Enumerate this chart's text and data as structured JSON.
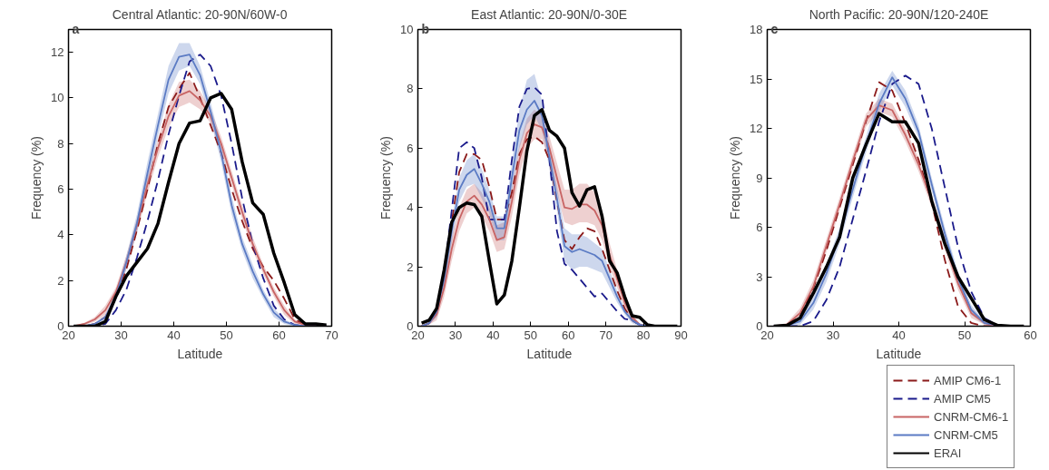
{
  "chart_data": [
    {
      "type": "line",
      "title": "Central Atlantic: 20-90N/60W-0",
      "annotations": [
        "a"
      ],
      "xlabel": "Latitude",
      "ylabel": "Frequency (%)",
      "xlim": [
        20,
        70
      ],
      "xticks": [
        20,
        30,
        40,
        50,
        60,
        70
      ],
      "ylim": [
        0,
        13
      ],
      "yticks": [
        0,
        2,
        4,
        6,
        8,
        10,
        12
      ],
      "grid": false,
      "x": [
        21,
        23,
        25,
        27,
        29,
        31,
        33,
        35,
        37,
        39,
        41,
        43,
        45,
        47,
        49,
        51,
        53,
        55,
        57,
        59,
        61,
        63,
        65,
        67,
        69
      ],
      "series": [
        {
          "color": "#8b1a1a",
          "line_style": "dashed",
          "values": [
            0,
            0,
            0.1,
            0.4,
            1.2,
            2.5,
            4.2,
            6.0,
            8.0,
            9.6,
            10.4,
            11.1,
            10.0,
            8.8,
            7.6,
            6.0,
            4.6,
            3.4,
            2.6,
            2.0,
            1.2,
            0.3,
            0.05,
            0,
            0
          ]
        },
        {
          "color": "#1a1a8b",
          "line_style": "dashed",
          "values": [
            0,
            0,
            0,
            0.1,
            0.7,
            1.6,
            3.0,
            4.6,
            6.4,
            8.4,
            10.1,
            11.6,
            11.9,
            11.4,
            10.1,
            8.0,
            5.6,
            3.6,
            2.1,
            0.9,
            0.3,
            0.05,
            0,
            0,
            0
          ]
        },
        {
          "color": "#c86464",
          "line_style": "solid",
          "values": [
            0,
            0.1,
            0.3,
            0.7,
            1.5,
            2.8,
            4.4,
            6.2,
            7.8,
            9.2,
            10.1,
            10.3,
            9.9,
            9.2,
            8.0,
            6.5,
            5.0,
            3.6,
            2.5,
            1.5,
            0.7,
            0.2,
            0.05,
            0,
            0
          ],
          "upper": [
            0,
            0.15,
            0.4,
            0.9,
            1.7,
            3.1,
            4.7,
            6.6,
            8.2,
            9.7,
            10.7,
            10.8,
            10.3,
            9.5,
            8.3,
            6.8,
            5.3,
            3.9,
            2.7,
            1.7,
            0.9,
            0.3,
            0.1,
            0,
            0
          ],
          "lower": [
            0,
            0.05,
            0.2,
            0.5,
            1.3,
            2.5,
            4.1,
            5.8,
            7.4,
            8.7,
            9.6,
            9.8,
            9.5,
            8.9,
            7.7,
            6.2,
            4.7,
            3.3,
            2.3,
            1.3,
            0.5,
            0.1,
            0,
            0,
            0
          ]
        },
        {
          "color": "#5b7bc4",
          "line_style": "solid",
          "values": [
            0,
            0,
            0.1,
            0.4,
            1.3,
            2.8,
            4.5,
            6.7,
            8.8,
            10.8,
            11.8,
            11.9,
            11.0,
            9.4,
            7.6,
            5.3,
            3.6,
            2.4,
            1.4,
            0.6,
            0.2,
            0.05,
            0,
            0,
            0
          ],
          "upper": [
            0,
            0,
            0.15,
            0.5,
            1.5,
            3.1,
            4.9,
            7.2,
            9.3,
            11.4,
            12.4,
            12.4,
            11.4,
            9.8,
            8.0,
            5.7,
            3.9,
            2.7,
            1.6,
            0.8,
            0.3,
            0.1,
            0,
            0,
            0
          ],
          "lower": [
            0,
            0,
            0.05,
            0.3,
            1.1,
            2.5,
            4.1,
            6.2,
            8.3,
            10.2,
            11.2,
            11.4,
            10.6,
            9.0,
            7.2,
            4.9,
            3.3,
            2.1,
            1.2,
            0.4,
            0.1,
            0,
            0,
            0,
            0
          ]
        },
        {
          "color": "#000000",
          "line_style": "solid",
          "values": [
            0,
            0,
            0,
            0.2,
            1.3,
            2.2,
            2.8,
            3.4,
            4.5,
            6.3,
            8.0,
            8.9,
            9.0,
            10.0,
            10.2,
            9.5,
            7.2,
            5.4,
            4.9,
            3.2,
            1.9,
            0.5,
            0.1,
            0.1,
            0.05
          ]
        }
      ]
    },
    {
      "type": "line",
      "title": "East Atlantic: 20-90N/0-30E",
      "annotations": [
        "b"
      ],
      "xlabel": "Latitude",
      "ylabel": "Frequency (%)",
      "xlim": [
        20,
        90
      ],
      "xticks": [
        20,
        30,
        40,
        50,
        60,
        70,
        80,
        90
      ],
      "ylim": [
        0,
        10
      ],
      "yticks": [
        0,
        2,
        4,
        6,
        8,
        10
      ],
      "grid": false,
      "x": [
        21,
        23,
        25,
        27,
        29,
        31,
        33,
        35,
        37,
        39,
        41,
        43,
        45,
        47,
        49,
        51,
        53,
        55,
        57,
        59,
        61,
        63,
        65,
        67,
        69,
        71,
        73,
        75,
        77,
        79,
        81,
        83,
        85,
        87,
        89
      ],
      "series": [
        {
          "color": "#8b1a1a",
          "line_style": "dashed",
          "values": [
            0,
            0.1,
            0.5,
            1.7,
            3.5,
            5.2,
            5.8,
            5.8,
            5.6,
            4.7,
            3.6,
            3.6,
            4.5,
            5.8,
            6.3,
            6.4,
            6.2,
            5.6,
            4.2,
            2.9,
            2.6,
            3.0,
            3.3,
            3.2,
            2.6,
            1.9,
            1.2,
            0.6,
            0.2,
            0.05,
            0,
            0,
            null,
            null,
            null
          ]
        },
        {
          "color": "#1a1a8b",
          "line_style": "dashed",
          "values": [
            0,
            0.1,
            0.5,
            1.8,
            3.9,
            6.0,
            6.2,
            6.0,
            5.0,
            3.6,
            3.6,
            3.6,
            5.6,
            7.4,
            8.0,
            8.05,
            7.8,
            5.6,
            3.2,
            2.1,
            1.9,
            1.6,
            1.3,
            1.0,
            1.1,
            0.8,
            0.5,
            0.25,
            0.2,
            0.05,
            0,
            0,
            null,
            null,
            null
          ]
        },
        {
          "color": "#c86464",
          "line_style": "solid",
          "values": [
            0,
            0.1,
            0.4,
            1.3,
            2.6,
            3.6,
            4.2,
            4.4,
            4.1,
            3.6,
            2.9,
            3.0,
            4.2,
            5.6,
            6.5,
            6.8,
            6.7,
            6.0,
            5.0,
            4.0,
            3.95,
            4.1,
            4.1,
            3.9,
            3.4,
            2.4,
            1.6,
            0.8,
            0.3,
            0.05,
            0,
            null,
            null,
            null,
            null
          ],
          "upper": [
            0,
            0.15,
            0.6,
            1.6,
            3.0,
            4.0,
            4.6,
            4.8,
            4.5,
            4.0,
            3.4,
            3.5,
            4.7,
            6.1,
            7.0,
            7.3,
            7.1,
            6.4,
            5.5,
            4.6,
            4.6,
            4.8,
            4.8,
            4.5,
            3.9,
            2.8,
            1.9,
            1.0,
            0.4,
            0.1,
            0,
            null,
            null,
            null,
            null
          ],
          "lower": [
            0,
            0.05,
            0.2,
            1.0,
            2.2,
            3.2,
            3.8,
            4.0,
            3.7,
            3.2,
            2.5,
            2.6,
            3.7,
            5.1,
            6.0,
            6.3,
            6.3,
            5.6,
            4.5,
            3.5,
            3.4,
            3.5,
            3.5,
            3.4,
            2.9,
            2.0,
            1.3,
            0.6,
            0.2,
            0,
            0,
            null,
            null,
            null,
            null
          ]
        },
        {
          "color": "#5b7bc4",
          "line_style": "solid",
          "values": [
            0,
            0.1,
            0.5,
            1.6,
            3.2,
            4.6,
            5.1,
            5.3,
            4.8,
            4.2,
            3.3,
            3.3,
            5.0,
            6.6,
            7.3,
            7.6,
            7.1,
            5.7,
            4.3,
            2.7,
            2.5,
            2.6,
            2.5,
            2.4,
            2.2,
            1.6,
            1.0,
            0.5,
            0.2,
            0.05,
            0,
            null,
            null,
            null,
            null
          ],
          "upper": [
            0,
            0.15,
            0.7,
            1.9,
            3.6,
            5.0,
            5.6,
            5.8,
            5.3,
            4.6,
            3.7,
            3.7,
            5.5,
            7.3,
            8.3,
            8.5,
            7.6,
            6.1,
            4.7,
            3.3,
            3.1,
            3.1,
            3.0,
            2.8,
            2.6,
            1.9,
            1.2,
            0.6,
            0.3,
            0.1,
            0,
            null,
            null,
            null,
            null
          ],
          "lower": [
            0,
            0.05,
            0.3,
            1.3,
            2.8,
            4.2,
            4.7,
            4.8,
            4.3,
            3.8,
            2.9,
            2.9,
            4.5,
            6.0,
            6.8,
            7.1,
            6.6,
            5.3,
            3.9,
            2.2,
            1.9,
            2.0,
            2.0,
            1.9,
            1.8,
            1.3,
            0.8,
            0.4,
            0.1,
            0,
            0,
            null,
            null,
            null,
            null
          ]
        },
        {
          "color": "#000000",
          "line_style": "solid",
          "values": [
            0.1,
            0.2,
            0.6,
            1.9,
            3.5,
            4.0,
            4.15,
            4.1,
            3.7,
            2.2,
            0.75,
            1.05,
            2.2,
            4.0,
            5.9,
            7.1,
            7.3,
            6.6,
            6.4,
            6.0,
            4.5,
            4.05,
            4.6,
            4.7,
            3.7,
            2.2,
            1.8,
            1.0,
            0.35,
            0.3,
            0.05,
            0,
            0,
            0,
            0
          ]
        }
      ]
    },
    {
      "type": "line",
      "title": "North Pacific: 20-90N/120-240E",
      "annotations": [
        "c"
      ],
      "xlabel": "Latitude",
      "ylabel": "Frequency (%)",
      "xlim": [
        20,
        60
      ],
      "xticks": [
        20,
        30,
        40,
        50,
        60
      ],
      "ylim": [
        0,
        18
      ],
      "yticks": [
        0,
        3,
        6,
        9,
        12,
        15,
        18
      ],
      "grid": false,
      "legend": "bottom right",
      "x": [
        21,
        23,
        25,
        27,
        29,
        31,
        33,
        35,
        37,
        39,
        41,
        43,
        45,
        47,
        49,
        51,
        53,
        55,
        57,
        59
      ],
      "series": [
        {
          "name": "AMIP CM6-1",
          "color": "#8b1a1a",
          "line_style": "dashed",
          "values": [
            0,
            0.05,
            0.6,
            2.3,
            4.6,
            7.2,
            9.8,
            12.4,
            14.8,
            14.3,
            12.3,
            10.1,
            7.5,
            4.0,
            1.2,
            0.2,
            0,
            0,
            0,
            0
          ]
        },
        {
          "name": "AMIP CM5",
          "color": "#1a1a8b",
          "line_style": "dashed",
          "values": [
            0,
            0,
            0,
            0.3,
            1.6,
            3.6,
            6.5,
            9.4,
            12.4,
            14.7,
            15.2,
            14.7,
            12.0,
            8.4,
            4.8,
            2.1,
            0.5,
            0.05,
            0,
            0
          ]
        },
        {
          "name": "CNRM-CM6-1",
          "color": "#c86464",
          "line_style": "solid",
          "values": [
            0,
            0.1,
            0.8,
            2.4,
            4.9,
            7.4,
            10.0,
            12.5,
            13.4,
            13.1,
            11.6,
            9.8,
            7.6,
            5.0,
            2.6,
            0.8,
            0.2,
            0,
            0,
            0
          ],
          "upper": [
            0,
            0.2,
            1.1,
            2.8,
            5.3,
            7.8,
            10.4,
            12.9,
            13.8,
            13.5,
            12.0,
            10.2,
            8.0,
            5.4,
            3.0,
            1.1,
            0.3,
            0.05,
            0,
            0
          ],
          "lower": [
            0,
            0.05,
            0.5,
            2.0,
            4.5,
            7.0,
            9.6,
            12.1,
            13.0,
            12.7,
            11.2,
            9.4,
            7.2,
            4.6,
            2.2,
            0.5,
            0.1,
            0,
            0,
            0
          ]
        },
        {
          "name": "CNRM-CM5",
          "color": "#5b7bc4",
          "line_style": "solid",
          "values": [
            0,
            0.05,
            0.3,
            1.4,
            3.2,
            5.5,
            8.3,
            11.0,
            13.5,
            15.1,
            13.8,
            11.8,
            8.6,
            5.6,
            2.9,
            1.0,
            0.2,
            0.05,
            0,
            0
          ],
          "upper": [
            0,
            0.1,
            0.5,
            1.8,
            3.7,
            6.0,
            8.8,
            11.5,
            14.1,
            15.5,
            14.3,
            12.2,
            9.0,
            6.0,
            3.3,
            1.3,
            0.3,
            0.1,
            0,
            0
          ],
          "lower": [
            0,
            0,
            0.1,
            1.0,
            2.7,
            5.0,
            7.8,
            10.5,
            13.0,
            14.6,
            13.3,
            11.4,
            8.2,
            5.2,
            2.5,
            0.7,
            0.1,
            0,
            0,
            0
          ]
        },
        {
          "name": "ERAI",
          "color": "#000000",
          "line_style": "solid",
          "values": [
            0,
            0.05,
            0.5,
            2.0,
            3.6,
            5.4,
            9.0,
            11.0,
            12.9,
            12.4,
            12.4,
            11.1,
            7.6,
            5.0,
            3.0,
            1.7,
            0.4,
            0.05,
            0,
            0
          ]
        }
      ]
    }
  ]
}
